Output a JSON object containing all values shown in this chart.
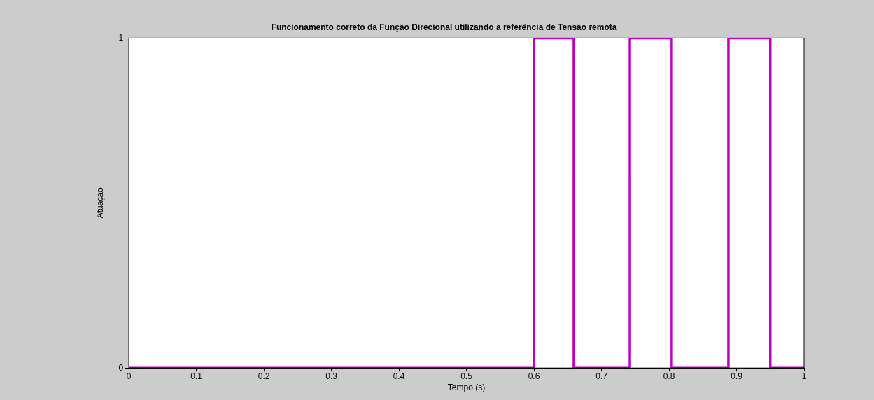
{
  "chart_data": {
    "type": "step",
    "title": "Funcionamento correto da Função Direcional utilizando a referência de Tensão remota",
    "xlabel": "Tempo (s)",
    "ylabel": "Atuação",
    "x": [
      0,
      0.6,
      0.659,
      0.742,
      0.804,
      0.888,
      0.95,
      1
    ],
    "series": [
      {
        "color": "#c000c0",
        "values": [
          0,
          1,
          0,
          1,
          0,
          1,
          0,
          0
        ]
      }
    ],
    "xlim": [
      0,
      1
    ],
    "xticks": [
      0,
      0.1,
      0.2,
      0.3,
      0.4,
      0.5,
      0.6,
      0.7,
      0.8,
      0.9,
      1
    ],
    "ylim": [
      0,
      1
    ],
    "yticks": [
      0,
      1
    ],
    "legend": false
  }
}
